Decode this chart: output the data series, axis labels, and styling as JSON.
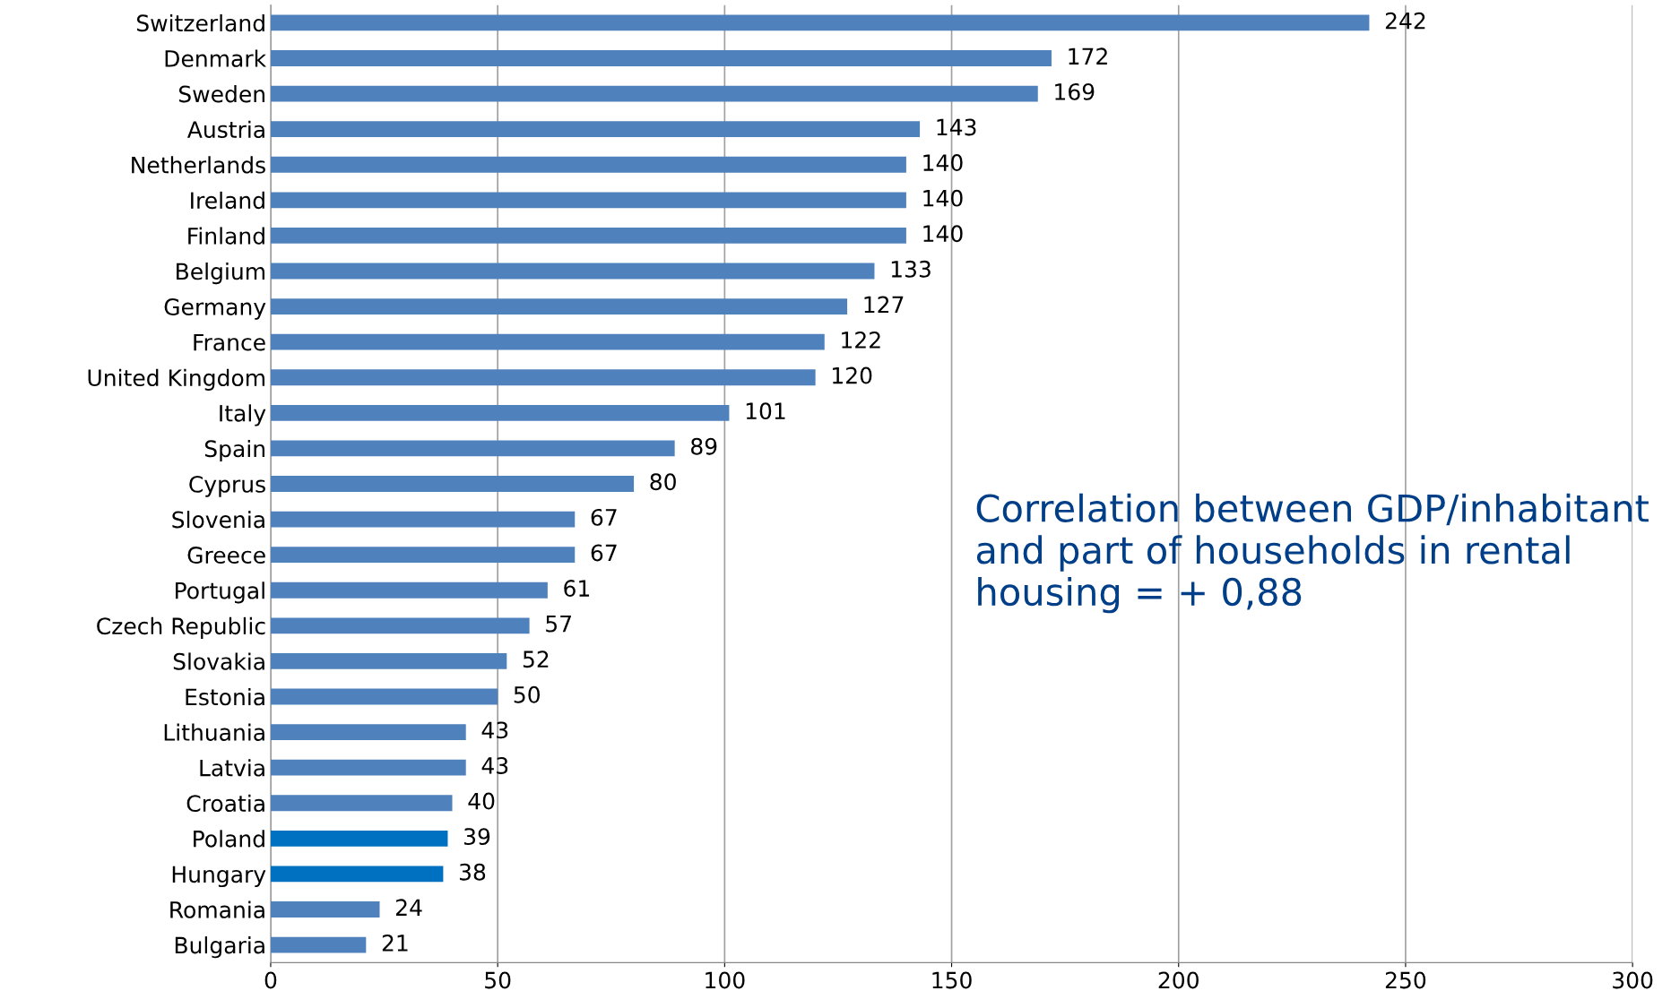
{
  "chart_data": {
    "type": "bar",
    "orientation": "horizontal",
    "categories": [
      "Switzerland",
      "Denmark",
      "Sweden",
      "Austria",
      "Netherlands",
      "Ireland",
      "Finland",
      "Belgium",
      "Germany",
      "France",
      "United Kingdom",
      "Italy",
      "Spain",
      "Cyprus",
      "Slovenia",
      "Greece",
      "Portugal",
      "Czech Republic",
      "Slovakia",
      "Estonia",
      "Lithuania",
      "Latvia",
      "Croatia",
      "Poland",
      "Hungary",
      "Romania",
      "Bulgaria"
    ],
    "values": [
      242,
      172,
      169,
      143,
      140,
      140,
      140,
      133,
      127,
      122,
      120,
      101,
      89,
      80,
      67,
      67,
      61,
      57,
      52,
      50,
      43,
      43,
      40,
      39,
      38,
      24,
      21
    ],
    "colors": [
      "#4f81bd",
      "#4f81bd",
      "#4f81bd",
      "#4f81bd",
      "#4f81bd",
      "#4f81bd",
      "#4f81bd",
      "#4f81bd",
      "#4f81bd",
      "#4f81bd",
      "#4f81bd",
      "#4f81bd",
      "#4f81bd",
      "#4f81bd",
      "#4f81bd",
      "#4f81bd",
      "#4f81bd",
      "#4f81bd",
      "#4f81bd",
      "#4f81bd",
      "#4f81bd",
      "#4f81bd",
      "#4f81bd",
      "#0070c0",
      "#0070c0",
      "#4f81bd",
      "#4f81bd"
    ],
    "xlim": [
      0,
      300
    ],
    "xticks": [
      0,
      50,
      100,
      150,
      200,
      250,
      300
    ],
    "grid": "x",
    "data_labels": true,
    "annotations": [
      "Correlation between GDP/inhabitant and part of households in rental housing = + 0,88"
    ]
  }
}
